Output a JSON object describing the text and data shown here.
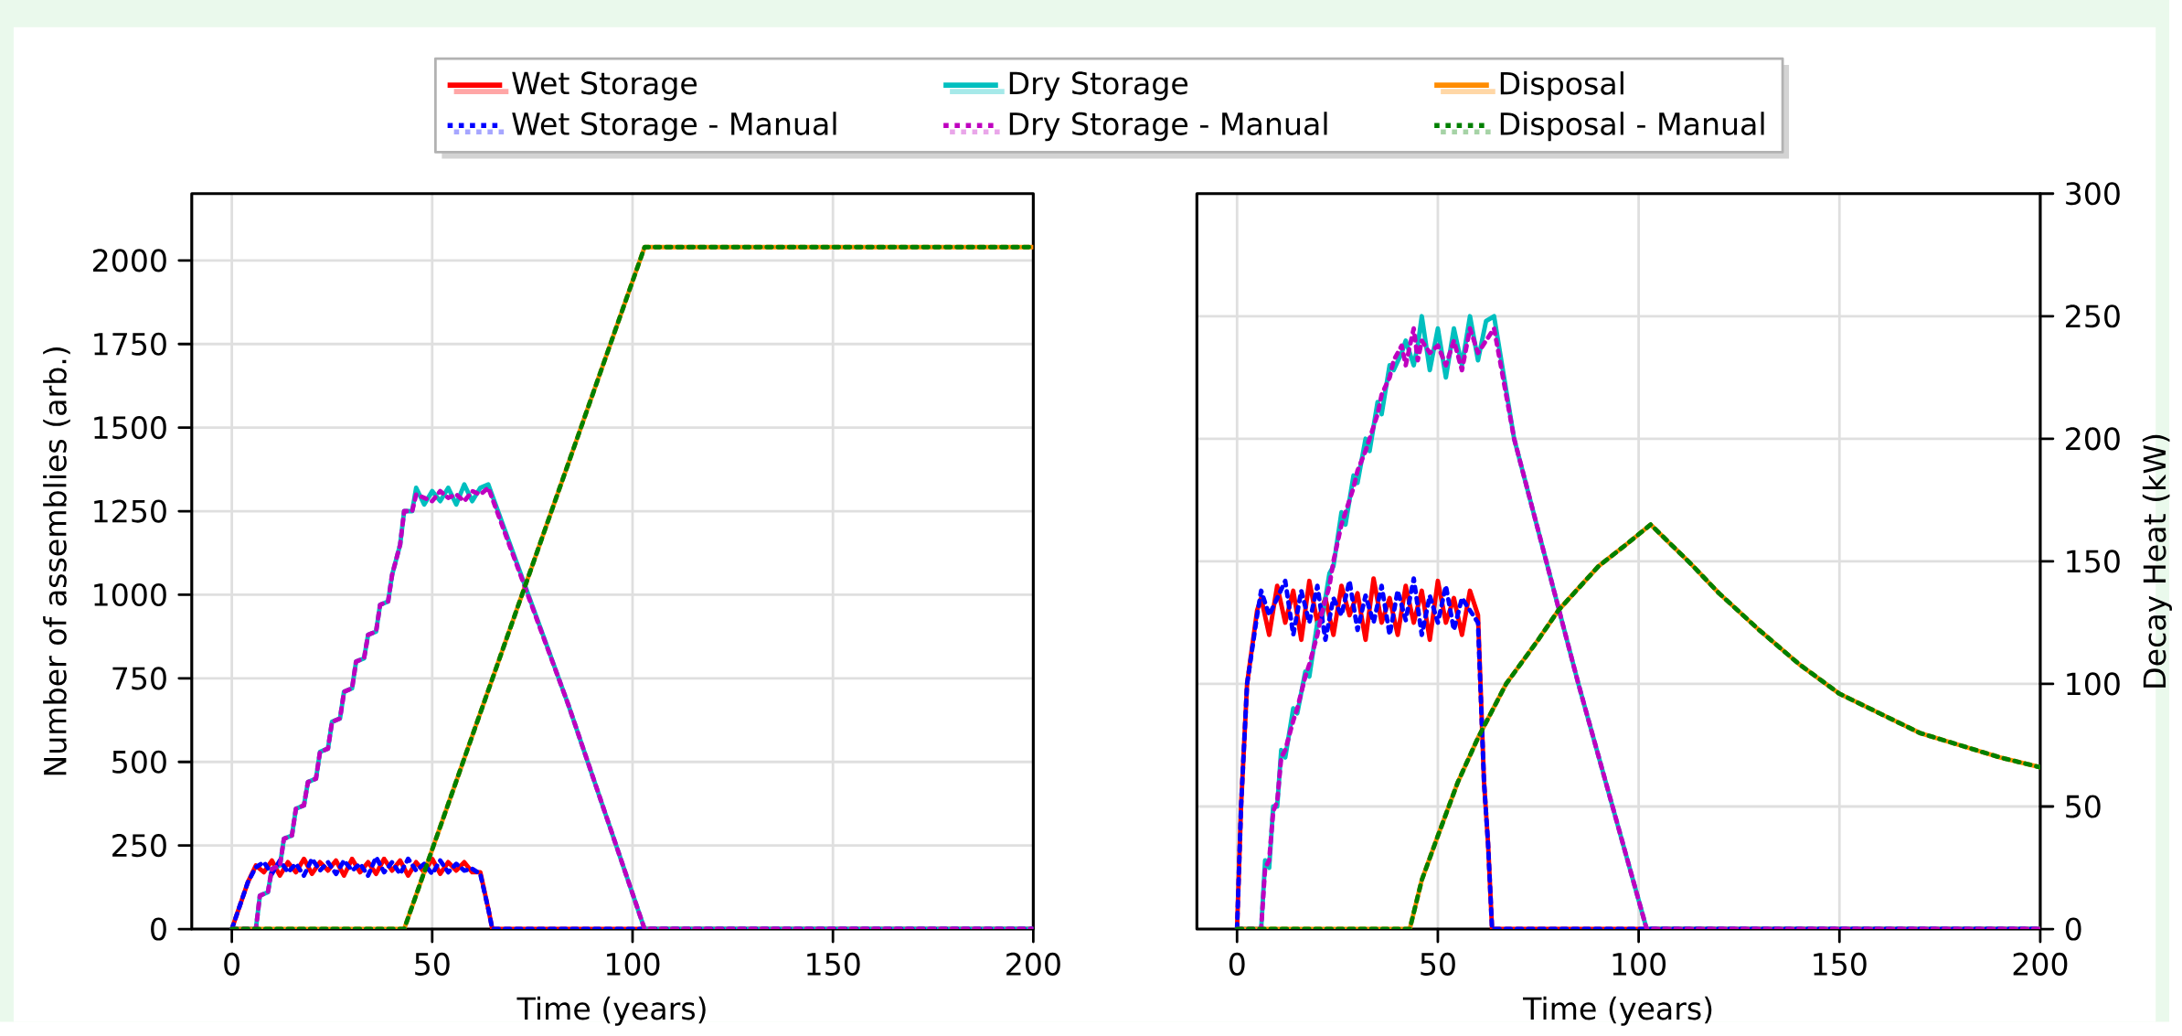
{
  "chart_data": [
    {
      "type": "line",
      "xlabel": "Time (years)",
      "ylabel": "Number of assemblies (arb.)",
      "xlim": [
        -10,
        200
      ],
      "ylim": [
        0,
        2200
      ],
      "xticks": [
        0,
        50,
        100,
        150,
        200
      ],
      "yticks": [
        0,
        250,
        500,
        750,
        1000,
        1250,
        1500,
        1750,
        2000
      ],
      "grid": true,
      "legend": "top",
      "series": [
        {
          "name": "Wet Storage",
          "color": "#ff0000",
          "line_style": "solid",
          "x": [
            0,
            2,
            4,
            6,
            8,
            10,
            12,
            14,
            16,
            18,
            20,
            22,
            24,
            26,
            28,
            30,
            32,
            34,
            36,
            38,
            40,
            42,
            44,
            46,
            48,
            50,
            52,
            54,
            56,
            58,
            60,
            62,
            64,
            65,
            200
          ],
          "values": [
            0,
            70,
            140,
            190,
            170,
            205,
            160,
            200,
            170,
            210,
            165,
            200,
            175,
            205,
            160,
            210,
            170,
            200,
            165,
            210,
            175,
            205,
            160,
            200,
            170,
            210,
            165,
            200,
            175,
            200,
            170,
            170,
            60,
            0,
            0
          ]
        },
        {
          "name": "Dry Storage",
          "color": "#00bfbf",
          "line_style": "solid",
          "x": [
            0,
            6,
            7,
            9,
            10,
            12,
            13,
            15,
            16,
            18,
            19,
            21,
            22,
            24,
            25,
            27,
            28,
            30,
            31,
            33,
            34,
            36,
            37,
            39,
            40,
            42,
            43,
            45,
            46,
            48,
            50,
            52,
            54,
            56,
            58,
            60,
            62,
            64,
            84,
            103,
            200
          ],
          "values": [
            0,
            0,
            100,
            110,
            180,
            190,
            270,
            280,
            360,
            370,
            440,
            450,
            530,
            540,
            620,
            630,
            710,
            720,
            800,
            810,
            880,
            890,
            970,
            980,
            1060,
            1150,
            1250,
            1250,
            1320,
            1270,
            1310,
            1280,
            1320,
            1270,
            1330,
            1280,
            1320,
            1330,
            670,
            0,
            0
          ]
        },
        {
          "name": "Disposal",
          "color": "#ff8c00",
          "line_style": "solid",
          "x": [
            0,
            43,
            103,
            200
          ],
          "values": [
            0,
            0,
            2040,
            2040
          ]
        },
        {
          "name": "Wet Storage - Manual",
          "color": "#0000ff",
          "line_style": "dotted",
          "x": [
            0,
            2,
            4,
            6,
            8,
            10,
            12,
            14,
            16,
            18,
            20,
            22,
            24,
            26,
            28,
            30,
            32,
            34,
            36,
            38,
            40,
            42,
            44,
            46,
            48,
            50,
            52,
            54,
            56,
            58,
            60,
            62,
            64,
            65,
            200
          ],
          "values": [
            0,
            70,
            140,
            185,
            200,
            165,
            205,
            170,
            195,
            160,
            210,
            175,
            200,
            165,
            205,
            175,
            195,
            160,
            215,
            170,
            200,
            165,
            210,
            175,
            195,
            165,
            205,
            170,
            195,
            175,
            180,
            165,
            60,
            0,
            0
          ]
        },
        {
          "name": "Dry Storage - Manual",
          "color": "#bf00bf",
          "line_style": "dotted",
          "x": [
            0,
            6,
            7,
            9,
            10,
            12,
            13,
            15,
            16,
            18,
            19,
            21,
            22,
            24,
            25,
            27,
            28,
            30,
            31,
            33,
            34,
            36,
            37,
            39,
            40,
            42,
            43,
            45,
            46,
            48,
            50,
            52,
            54,
            56,
            58,
            60,
            62,
            64,
            84,
            103,
            200
          ],
          "values": [
            0,
            0,
            100,
            110,
            180,
            190,
            270,
            280,
            360,
            370,
            440,
            450,
            530,
            540,
            620,
            630,
            710,
            720,
            800,
            810,
            880,
            890,
            970,
            980,
            1060,
            1150,
            1250,
            1250,
            1300,
            1290,
            1280,
            1310,
            1290,
            1300,
            1280,
            1310,
            1300,
            1320,
            670,
            0,
            0
          ]
        },
        {
          "name": "Disposal - Manual",
          "color": "#008000",
          "line_style": "dotted",
          "x": [
            0,
            43,
            103,
            200
          ],
          "values": [
            0,
            0,
            2040,
            2040
          ]
        }
      ]
    },
    {
      "type": "line",
      "xlabel": "Time (years)",
      "y2label": "Decay Heat (kW)",
      "xlim": [
        -10,
        200
      ],
      "y2lim": [
        0,
        300
      ],
      "xticks": [
        0,
        50,
        100,
        150,
        200
      ],
      "y2ticks": [
        0,
        50,
        100,
        150,
        200,
        250,
        300
      ],
      "grid": true,
      "series": [
        {
          "color": "#ff0000",
          "line_style": "solid",
          "axis": "y2",
          "x": [
            0,
            1,
            2.5,
            5,
            6,
            8,
            10,
            12,
            14,
            16,
            18,
            20,
            22,
            24,
            26,
            28,
            30,
            32,
            34,
            36,
            38,
            40,
            42,
            44,
            46,
            48,
            50,
            52,
            54,
            56,
            58,
            60,
            61.5,
            62.5,
            63.5,
            200
          ],
          "values": [
            0,
            50,
            100,
            130,
            135,
            120,
            140,
            125,
            138,
            118,
            142,
            125,
            135,
            120,
            140,
            128,
            137,
            118,
            143,
            125,
            135,
            120,
            140,
            125,
            138,
            118,
            142,
            125,
            135,
            120,
            138,
            128,
            60,
            35,
            0,
            0
          ]
        },
        {
          "color": "#00bfbf",
          "line_style": "solid",
          "axis": "y2",
          "x": [
            0,
            6,
            7,
            8,
            9,
            10,
            11,
            12,
            14,
            15,
            17,
            18,
            20,
            21,
            23,
            24,
            26,
            27,
            29,
            30,
            32,
            33,
            35,
            36,
            38,
            39,
            41,
            42,
            44,
            45,
            46,
            48,
            50,
            52,
            54,
            56,
            58,
            60,
            62,
            64,
            69,
            85,
            102,
            200
          ],
          "values": [
            0,
            0,
            28,
            25,
            50,
            50,
            73,
            70,
            90,
            88,
            105,
            103,
            125,
            125,
            145,
            148,
            170,
            165,
            185,
            182,
            200,
            195,
            215,
            210,
            230,
            228,
            235,
            240,
            230,
            238,
            250,
            228,
            245,
            225,
            245,
            230,
            250,
            232,
            248,
            250,
            200,
            100,
            0,
            0
          ]
        },
        {
          "color": "#ff8c00",
          "line_style": "solid",
          "axis": "y2",
          "x": [
            0,
            43,
            46,
            50,
            55,
            60,
            67,
            75,
            80,
            90,
            97,
            103,
            108,
            113,
            120,
            130,
            140,
            150,
            160,
            170,
            180,
            190,
            200
          ],
          "values": [
            0,
            0,
            20,
            38,
            60,
            78,
            100,
            118,
            130,
            148,
            157,
            165,
            157,
            149,
            137,
            122,
            108,
            96,
            88,
            80,
            75,
            70,
            66
          ]
        },
        {
          "color": "#0000ff",
          "line_style": "dotted",
          "axis": "y2",
          "x": [
            0,
            1,
            2.5,
            5,
            6,
            8,
            10,
            12,
            14,
            16,
            18,
            20,
            22,
            24,
            26,
            28,
            30,
            32,
            34,
            36,
            38,
            40,
            42,
            44,
            46,
            48,
            50,
            52,
            54,
            56,
            58,
            60,
            61.5,
            62.5,
            63.5,
            200
          ],
          "values": [
            0,
            50,
            100,
            128,
            138,
            128,
            135,
            142,
            120,
            138,
            125,
            140,
            118,
            135,
            128,
            142,
            122,
            136,
            125,
            140,
            120,
            138,
            126,
            143,
            120,
            136,
            125,
            140,
            122,
            135,
            130,
            125,
            60,
            35,
            0,
            0
          ]
        },
        {
          "color": "#bf00bf",
          "line_style": "dotted",
          "axis": "y2",
          "x": [
            0,
            6,
            7,
            8,
            9,
            10,
            11,
            12,
            14,
            15,
            17,
            18,
            20,
            21,
            23,
            24,
            26,
            27,
            29,
            30,
            32,
            33,
            35,
            36,
            38,
            39,
            41,
            42,
            44,
            45,
            46,
            48,
            50,
            52,
            54,
            56,
            58,
            60,
            62,
            64,
            69,
            85,
            102,
            200
          ],
          "values": [
            0,
            0,
            25,
            28,
            48,
            52,
            70,
            73,
            85,
            90,
            103,
            108,
            120,
            128,
            140,
            150,
            165,
            170,
            180,
            187,
            195,
            200,
            210,
            218,
            225,
            232,
            238,
            230,
            245,
            232,
            240,
            235,
            238,
            230,
            240,
            228,
            245,
            235,
            240,
            245,
            200,
            100,
            0,
            0
          ]
        },
        {
          "color": "#008000",
          "line_style": "dotted",
          "axis": "y2",
          "x": [
            0,
            43,
            46,
            50,
            55,
            60,
            67,
            75,
            80,
            90,
            97,
            103,
            108,
            113,
            120,
            130,
            140,
            150,
            160,
            170,
            180,
            190,
            200
          ],
          "values": [
            0,
            0,
            20,
            38,
            60,
            78,
            100,
            118,
            130,
            148,
            157,
            165,
            157,
            149,
            137,
            122,
            108,
            96,
            88,
            80,
            75,
            70,
            66
          ]
        }
      ]
    }
  ]
}
